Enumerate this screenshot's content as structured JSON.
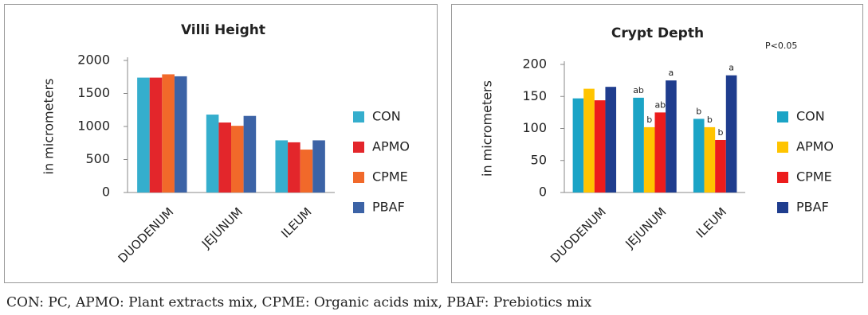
{
  "chart_data": [
    {
      "type": "bar",
      "title": "Villi Height",
      "y_label": "in micrometers",
      "categories": [
        "DUODENUM",
        "JEJUNUM",
        "ILEUM"
      ],
      "series": [
        {
          "name": "CON",
          "color": "#35aecd",
          "values": [
            1740,
            1180,
            790
          ]
        },
        {
          "name": "APMO",
          "color": "#e3262b",
          "values": [
            1740,
            1060,
            760
          ]
        },
        {
          "name": "CPME",
          "color": "#f1692a",
          "values": [
            1790,
            1010,
            650
          ]
        },
        {
          "name": "PBAF",
          "color": "#3c63a6",
          "values": [
            1760,
            1160,
            790
          ]
        }
      ],
      "ylim": [
        0,
        2000
      ],
      "yticks": [
        0,
        500,
        1000,
        1500,
        2000
      ],
      "grid": false,
      "legend": "right"
    },
    {
      "type": "bar",
      "title": "Crypt Depth",
      "y_label": "in micrometers",
      "annotation": "P<0.05",
      "categories": [
        "DUODENUM",
        "JEJUNUM",
        "ILEUM"
      ],
      "series": [
        {
          "name": "CON",
          "color": "#1ba4c6",
          "values": [
            147,
            148,
            115
          ],
          "letters": [
            null,
            "ab",
            "b"
          ]
        },
        {
          "name": "APMO",
          "color": "#ffc400",
          "values": [
            162,
            102,
            102
          ],
          "letters": [
            null,
            "b",
            "b"
          ]
        },
        {
          "name": "CPME",
          "color": "#ec1c1c",
          "values": [
            144,
            125,
            82
          ],
          "letters": [
            null,
            "ab",
            "b"
          ]
        },
        {
          "name": "PBAF",
          "color": "#1f3d8e",
          "values": [
            165,
            175,
            183
          ],
          "letters": [
            null,
            "a",
            "a"
          ]
        }
      ],
      "ylim": [
        0,
        200
      ],
      "yticks": [
        0,
        50,
        100,
        150,
        200
      ],
      "grid": false,
      "legend": "right"
    }
  ],
  "caption": "CON: PC, APMO: Plant extracts mix, CPME: Organic acids mix, PBAF: Prebiotics mix"
}
